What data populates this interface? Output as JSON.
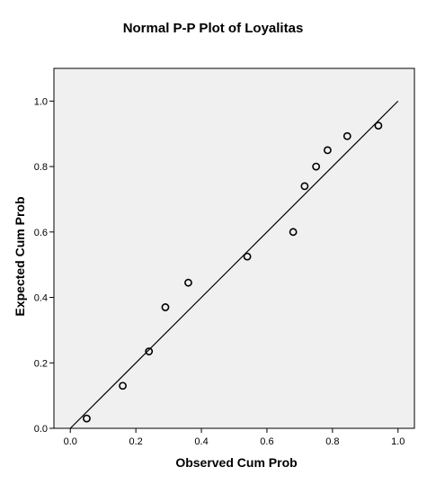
{
  "chart_data": {
    "type": "scatter",
    "title": "Normal P-P Plot of Loyalitas",
    "xlabel": "Observed Cum Prob",
    "ylabel": "Expected Cum Prob",
    "xlim": [
      -0.05,
      1.05
    ],
    "ylim": [
      0.0,
      1.1
    ],
    "xticks": [
      "0.0",
      "0.2",
      "0.4",
      "0.6",
      "0.8",
      "1.0"
    ],
    "yticks": [
      "0.0",
      "0.2",
      "0.4",
      "0.6",
      "0.8",
      "1.0"
    ],
    "reference_line": {
      "from": [
        0,
        0
      ],
      "to": [
        1,
        1
      ]
    },
    "points": [
      {
        "x": 0.05,
        "y": 0.03
      },
      {
        "x": 0.16,
        "y": 0.13
      },
      {
        "x": 0.24,
        "y": 0.235
      },
      {
        "x": 0.29,
        "y": 0.37
      },
      {
        "x": 0.36,
        "y": 0.445
      },
      {
        "x": 0.54,
        "y": 0.525
      },
      {
        "x": 0.68,
        "y": 0.6
      },
      {
        "x": 0.715,
        "y": 0.74
      },
      {
        "x": 0.75,
        "y": 0.8
      },
      {
        "x": 0.785,
        "y": 0.85
      },
      {
        "x": 0.845,
        "y": 0.893
      },
      {
        "x": 0.94,
        "y": 0.925
      }
    ],
    "grid": false,
    "colors": {
      "plot_background": "#f0f0f0",
      "frame": "#000000",
      "marker": "#000000",
      "line": "#000000"
    }
  }
}
